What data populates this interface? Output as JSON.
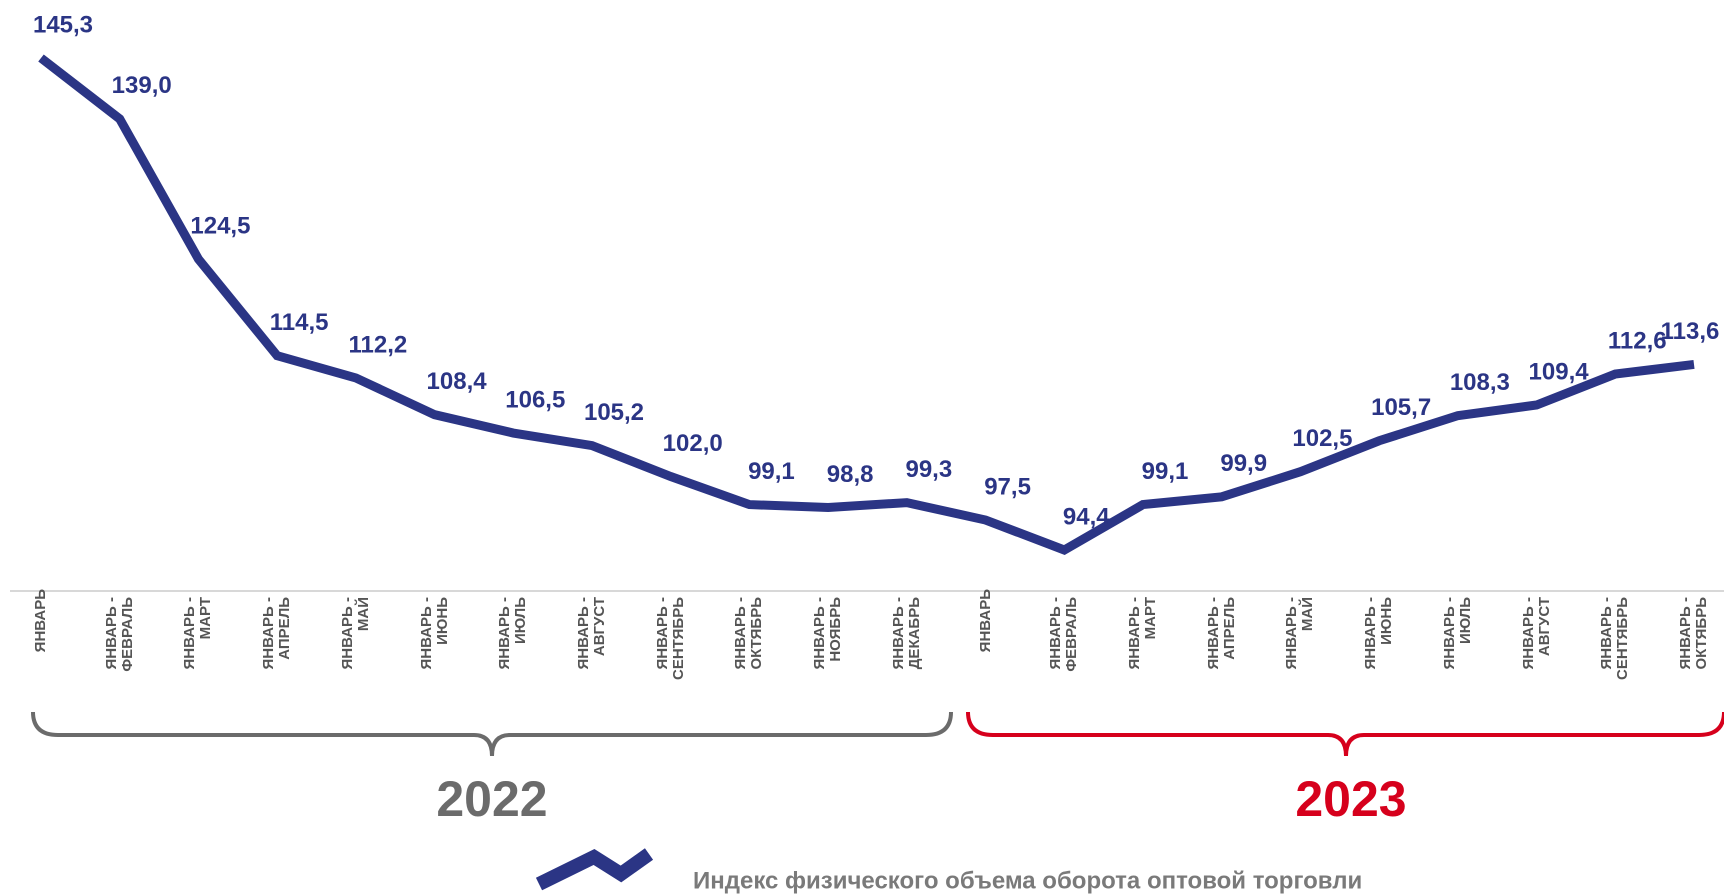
{
  "chart_data": {
    "type": "line",
    "categories": [
      "ЯНВАРЬ",
      "ЯНВАРЬ - ФЕВРАЛЬ",
      "ЯНВАРЬ - МАРТ",
      "ЯНВАРЬ - АПРЕЛЬ",
      "ЯНВАРЬ - МАЙ",
      "ЯНВАРЬ - ИЮНЬ",
      "ЯНВАРЬ - ИЮЛЬ",
      "ЯНВАРЬ - АВГУСТ",
      "ЯНВАРЬ - СЕНТЯБРЬ",
      "ЯНВАРЬ - ОКТЯБРЬ",
      "ЯНВАРЬ - НОЯБРЬ",
      "ЯНВАРЬ - ДЕКАБРЬ",
      "ЯНВАРЬ",
      "ЯНВАРЬ - ФЕВРАЛЬ",
      "ЯНВАРЬ - МАРТ",
      "ЯНВАРЬ - АПРЕЛЬ",
      "ЯНВАРЬ - МАЙ",
      "ЯНВАРЬ - ИЮНЬ",
      "ЯНВАРЬ - ИЮЛЬ",
      "ЯНВАРЬ - АВГУСТ",
      "ЯНВАРЬ - СЕНТЯБРЬ",
      "ЯНВАРЬ - ОКТЯБРЬ"
    ],
    "series": [
      {
        "name": "Индекс физического объема оборота оптовой торговли",
        "color": "#2b3585",
        "values": [
          145.3,
          139.0,
          124.5,
          114.5,
          112.2,
          108.4,
          106.5,
          105.2,
          102.0,
          99.1,
          98.8,
          99.3,
          97.5,
          94.4,
          99.1,
          99.9,
          102.5,
          105.7,
          108.3,
          109.4,
          112.6,
          113.6
        ],
        "value_labels": [
          "145,3",
          "139,0",
          "124,5",
          "114,5",
          "112,2",
          "108,4",
          "106,5",
          "105,2",
          "102,0",
          "99,1",
          "98,8",
          "99,3",
          "97,5",
          "94,4",
          "99,1",
          "99,9",
          "102,5",
          "105,7",
          "108,3",
          "109,4",
          "112,6",
          "113,6"
        ]
      }
    ],
    "groups": [
      {
        "label": "2022",
        "color": "#6b6b6b"
      },
      {
        "label": "2023",
        "color": "#d6001c"
      }
    ]
  }
}
